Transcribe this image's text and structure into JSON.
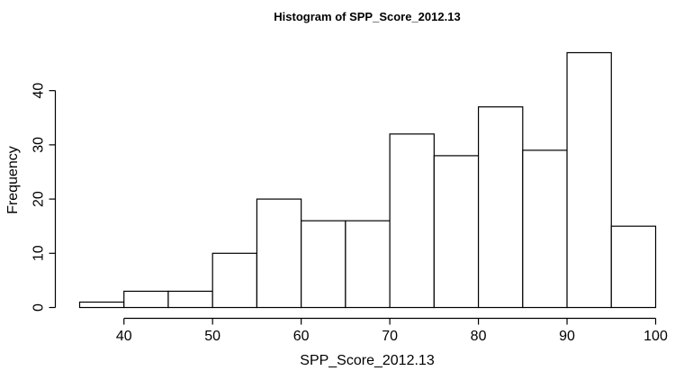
{
  "chart_data": {
    "type": "bar",
    "title": "Histogram of SPP_Score_2012.13",
    "xlabel": "SPP_Score_2012.13",
    "ylabel": "Frequency",
    "bin_edges": [
      35,
      40,
      45,
      50,
      55,
      60,
      65,
      70,
      75,
      80,
      85,
      90,
      95,
      100
    ],
    "values": [
      1,
      3,
      3,
      10,
      20,
      16,
      16,
      32,
      28,
      37,
      29,
      47,
      15
    ],
    "xlim": [
      35,
      100
    ],
    "ylim": [
      0,
      47
    ],
    "x_ticks": [
      40,
      50,
      60,
      70,
      80,
      90,
      100
    ],
    "y_ticks": [
      0,
      10,
      20,
      30,
      40
    ],
    "grid": false,
    "legend": "none"
  }
}
